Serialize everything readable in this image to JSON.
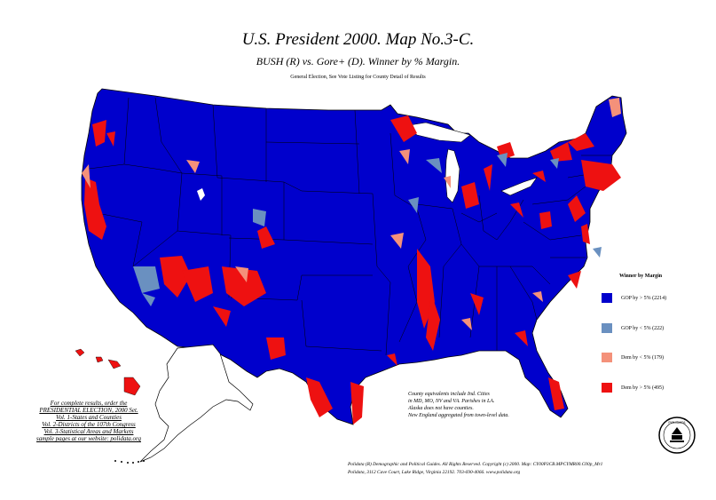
{
  "header": {
    "title": "U.S. President 2000. Map No.3-C.",
    "subtitle": "BUSH (R) vs. Gore+ (D). Winner by % Margin.",
    "note": "General Election, See Vote Listing for County Detail of Results"
  },
  "legend": {
    "title": "Winner by Margin",
    "items": [
      {
        "label": "GOP by > 5% (2214)",
        "color": "#0000cc"
      },
      {
        "label": "GOP by < 5% (222)",
        "color": "#6a90c0"
      },
      {
        "label": "Dem by < 5% (179)",
        "color": "#f4917a"
      },
      {
        "label": "Dem by > 5% (495)",
        "color": "#ee1111"
      }
    ]
  },
  "notes": {
    "left_lines": [
      "For complete results, order the",
      "PRESIDENTIAL ELECTION, 2000 Set.",
      "Vol. 1-States and Counties",
      "Vol. 2-Districts of the 107th Congress",
      "Vol. 3-Statistical Areas and Markets",
      "sample pages at our website: polidata.org"
    ],
    "mid_lines": [
      "County equivalents include Ind. Cities",
      "in MD, MO, NV and VA. Parishes in LA.",
      "Alaska does not have counties.",
      "New England aggregated from town-level data."
    ]
  },
  "footer": {
    "line1": "Polidata (R) Demographic and Political Guides. All Rights Reserved. Copyright (c) 2000. Map: CY00P3CB.MPCYMR00.C00p_Mr1",
    "line2": "Polidata, 3112 Cave Court, Lake Ridge, Virginia 22192. 703-690-4066. www.polidata.org"
  },
  "seal_text": "POLIDATA",
  "alaska_label": "AK"
}
